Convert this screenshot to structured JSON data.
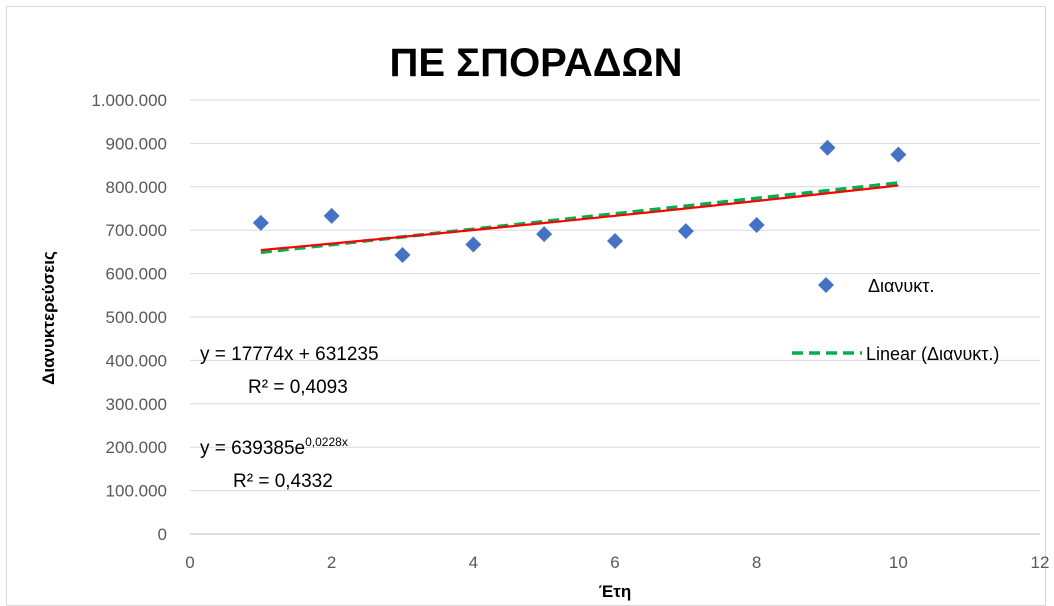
{
  "chart_data": {
    "type": "scatter",
    "title": "ΠΕ ΣΠΟΡΑΔΩΝ",
    "xlabel": "Έτη",
    "ylabel": "Διανυκτερεύσεις",
    "xlim": [
      0,
      12
    ],
    "ylim": [
      0,
      1000000
    ],
    "x_ticks": [
      "0",
      "2",
      "4",
      "6",
      "8",
      "10",
      "12"
    ],
    "y_ticks": [
      "0",
      "100.000",
      "200.000",
      "300.000",
      "400.000",
      "500.000",
      "600.000",
      "700.000",
      "800.000",
      "900.000",
      "1.000.000"
    ],
    "grid": "horizontal",
    "legend_position": "right",
    "series": [
      {
        "name": "Διανυκτ.",
        "marker": "diamond",
        "color": "#4472c4",
        "x": [
          1,
          2,
          3,
          4,
          5,
          6,
          7,
          8,
          9,
          10
        ],
        "y": [
          717000,
          733000,
          643000,
          667000,
          691000,
          675000,
          698000,
          712000,
          890000,
          874000
        ]
      }
    ],
    "trendlines": [
      {
        "name": "Linear (Διανυκτ.)",
        "kind": "linear",
        "color": "#00b050",
        "dash": true,
        "equation": "y = 17774x + 631235",
        "r2": "R² = 0,4093",
        "slope": 17774,
        "intercept": 631235,
        "x_range": [
          1,
          10
        ]
      },
      {
        "kind": "exponential",
        "color": "#ff0000",
        "dash": false,
        "equation_base": "y = 639385e",
        "equation_exp": "0,0228x",
        "r2": "R² = 0,4332",
        "coef": 639385,
        "rate": 0.0228,
        "x_range": [
          1,
          10
        ]
      }
    ]
  }
}
